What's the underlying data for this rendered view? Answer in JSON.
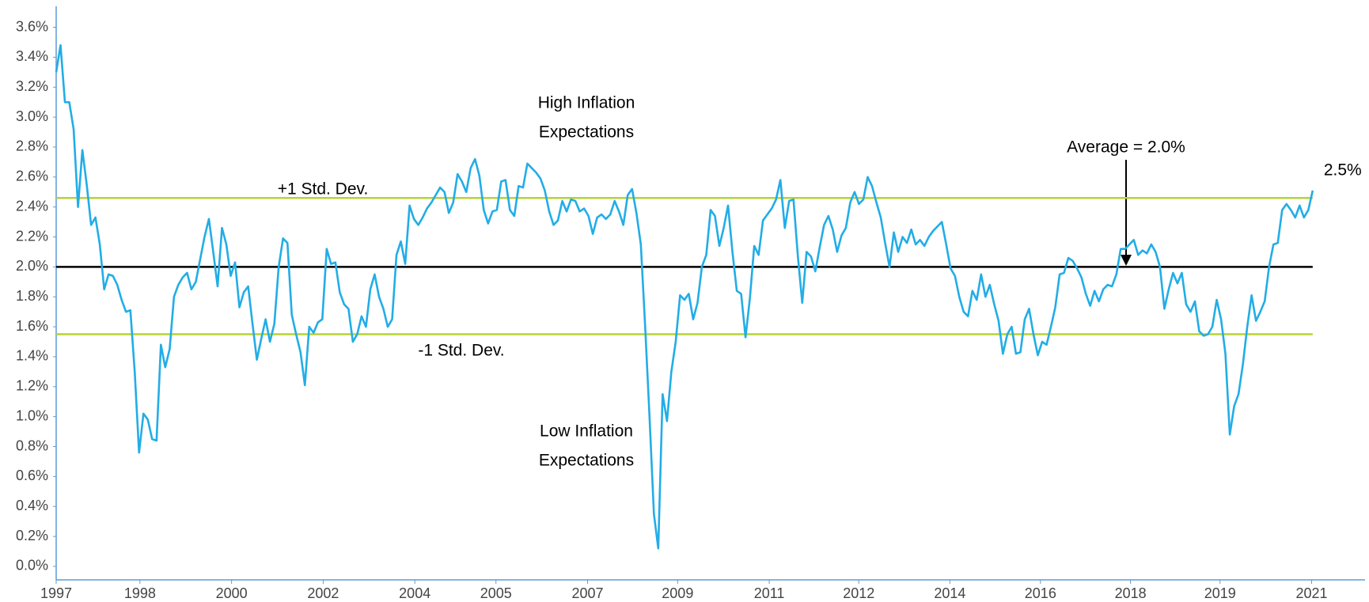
{
  "chart_data": {
    "type": "line",
    "color": "#22ade6",
    "x": [
      1997,
      1997.083,
      1997.167,
      1997.25,
      1997.333,
      1997.417,
      1997.5,
      1997.583,
      1997.667,
      1997.75,
      1997.833,
      1997.917,
      1998,
      1998.083,
      1998.167,
      1998.25,
      1998.333,
      1998.417,
      1998.5,
      1998.583,
      1998.667,
      1998.75,
      1998.833,
      1998.917,
      1999,
      1999.083,
      1999.167,
      1999.25,
      1999.333,
      1999.417,
      1999.5,
      1999.583,
      1999.667,
      1999.75,
      1999.833,
      1999.917,
      2000,
      2000.083,
      2000.167,
      2000.25,
      2000.333,
      2000.417,
      2000.5,
      2000.583,
      2000.667,
      2000.75,
      2000.833,
      2000.917,
      2001,
      2001.083,
      2001.167,
      2001.25,
      2001.333,
      2001.417,
      2001.5,
      2001.583,
      2001.667,
      2001.75,
      2001.833,
      2001.917,
      2002,
      2002.083,
      2002.167,
      2002.25,
      2002.333,
      2002.417,
      2002.5,
      2002.583,
      2002.667,
      2002.75,
      2002.833,
      2002.917,
      2003,
      2003.083,
      2003.167,
      2003.25,
      2003.333,
      2003.417,
      2003.5,
      2003.583,
      2003.667,
      2003.75,
      2003.833,
      2003.917,
      2004,
      2004.083,
      2004.167,
      2004.25,
      2004.333,
      2004.417,
      2004.5,
      2004.583,
      2004.667,
      2004.75,
      2004.833,
      2004.917,
      2005,
      2005.083,
      2005.167,
      2005.25,
      2005.333,
      2005.417,
      2005.5,
      2005.583,
      2005.667,
      2005.75,
      2005.833,
      2005.917,
      2006,
      2006.083,
      2006.167,
      2006.25,
      2006.333,
      2006.417,
      2006.5,
      2006.583,
      2006.667,
      2006.75,
      2006.833,
      2006.917,
      2007,
      2007.083,
      2007.167,
      2007.25,
      2007.333,
      2007.417,
      2007.5,
      2007.583,
      2007.667,
      2007.75,
      2007.833,
      2007.917,
      2008,
      2008.083,
      2008.167,
      2008.25,
      2008.333,
      2008.417,
      2008.5,
      2008.583,
      2008.667,
      2008.75,
      2008.833,
      2008.917,
      2009,
      2009.083,
      2009.167,
      2009.25,
      2009.333,
      2009.417,
      2009.5,
      2009.583,
      2009.667,
      2009.75,
      2009.833,
      2009.917,
      2010,
      2010.083,
      2010.167,
      2010.25,
      2010.333,
      2010.417,
      2010.5,
      2010.583,
      2010.667,
      2010.75,
      2010.833,
      2010.917,
      2011,
      2011.083,
      2011.167,
      2011.25,
      2011.333,
      2011.417,
      2011.5,
      2011.583,
      2011.667,
      2011.75,
      2011.833,
      2011.917,
      2012,
      2012.083,
      2012.167,
      2012.25,
      2012.333,
      2012.417,
      2012.5,
      2012.583,
      2012.667,
      2012.75,
      2012.833,
      2012.917,
      2013,
      2013.083,
      2013.167,
      2013.25,
      2013.333,
      2013.417,
      2013.5,
      2013.583,
      2013.667,
      2013.75,
      2013.833,
      2013.917,
      2014,
      2014.083,
      2014.167,
      2014.25,
      2014.333,
      2014.417,
      2014.5,
      2014.583,
      2014.667,
      2014.75,
      2014.833,
      2014.917,
      2015,
      2015.083,
      2015.167,
      2015.25,
      2015.333,
      2015.417,
      2015.5,
      2015.583,
      2015.667,
      2015.75,
      2015.833,
      2015.917,
      2016,
      2016.083,
      2016.167,
      2016.25,
      2016.333,
      2016.417,
      2016.5,
      2016.583,
      2016.667,
      2016.75,
      2016.833,
      2016.917,
      2017,
      2017.083,
      2017.167,
      2017.25,
      2017.333,
      2017.417,
      2017.5,
      2017.583,
      2017.667,
      2017.75,
      2017.833,
      2017.917,
      2018,
      2018.083,
      2018.167,
      2018.25,
      2018.333,
      2018.417,
      2018.5,
      2018.583,
      2018.667,
      2018.75,
      2018.833,
      2018.917,
      2019,
      2019.083,
      2019.167,
      2019.25,
      2019.333,
      2019.417,
      2019.5,
      2019.583,
      2019.667,
      2019.75,
      2019.833,
      2019.917,
      2020,
      2020.083,
      2020.167,
      2020.25,
      2020.333,
      2020.417,
      2020.5,
      2020.583,
      2020.667,
      2020.75,
      2020.833,
      2020.917,
      2021
    ],
    "values": [
      3.3,
      3.48,
      3.1,
      3.1,
      2.92,
      2.4,
      2.78,
      2.55,
      2.28,
      2.33,
      2.15,
      1.85,
      1.95,
      1.94,
      1.88,
      1.78,
      1.7,
      1.71,
      1.3,
      0.76,
      1.02,
      0.98,
      0.85,
      0.84,
      1.48,
      1.33,
      1.45,
      1.8,
      1.88,
      1.93,
      1.96,
      1.85,
      1.9,
      2.05,
      2.2,
      2.32,
      2.1,
      1.87,
      2.26,
      2.15,
      1.94,
      2.03,
      1.73,
      1.83,
      1.87,
      1.62,
      1.38,
      1.52,
      1.65,
      1.5,
      1.62,
      2.0,
      2.19,
      2.16,
      1.68,
      1.55,
      1.43,
      1.21,
      1.6,
      1.56,
      1.63,
      1.65,
      2.12,
      2.02,
      2.03,
      1.83,
      1.75,
      1.72,
      1.5,
      1.55,
      1.67,
      1.6,
      1.85,
      1.95,
      1.8,
      1.72,
      1.6,
      1.65,
      2.08,
      2.17,
      2.02,
      2.41,
      2.32,
      2.28,
      2.33,
      2.39,
      2.43,
      2.48,
      2.53,
      2.5,
      2.36,
      2.43,
      2.62,
      2.57,
      2.5,
      2.66,
      2.72,
      2.61,
      2.38,
      2.29,
      2.37,
      2.38,
      2.57,
      2.58,
      2.38,
      2.34,
      2.54,
      2.53,
      2.69,
      2.66,
      2.63,
      2.59,
      2.51,
      2.37,
      2.28,
      2.31,
      2.44,
      2.37,
      2.45,
      2.44,
      2.37,
      2.39,
      2.34,
      2.22,
      2.33,
      2.35,
      2.32,
      2.35,
      2.44,
      2.37,
      2.28,
      2.48,
      2.52,
      2.36,
      2.15,
      1.6,
      1.0,
      0.35,
      0.12,
      1.15,
      0.97,
      1.3,
      1.5,
      1.81,
      1.78,
      1.82,
      1.65,
      1.76,
      2.0,
      2.08,
      2.38,
      2.34,
      2.14,
      2.26,
      2.41,
      2.1,
      1.84,
      1.82,
      1.53,
      1.79,
      2.14,
      2.08,
      2.31,
      2.35,
      2.39,
      2.45,
      2.58,
      2.26,
      2.44,
      2.45,
      2.07,
      1.76,
      2.1,
      2.07,
      1.97,
      2.13,
      2.28,
      2.34,
      2.25,
      2.1,
      2.21,
      2.26,
      2.43,
      2.5,
      2.42,
      2.45,
      2.6,
      2.54,
      2.43,
      2.33,
      2.16,
      2.0,
      2.23,
      2.1,
      2.2,
      2.16,
      2.25,
      2.15,
      2.18,
      2.14,
      2.2,
      2.24,
      2.27,
      2.3,
      2.15,
      1.99,
      1.94,
      1.8,
      1.7,
      1.67,
      1.84,
      1.78,
      1.95,
      1.8,
      1.88,
      1.75,
      1.64,
      1.42,
      1.55,
      1.6,
      1.42,
      1.43,
      1.65,
      1.72,
      1.55,
      1.41,
      1.5,
      1.48,
      1.6,
      1.73,
      1.95,
      1.96,
      2.06,
      2.04,
      1.99,
      1.93,
      1.82,
      1.74,
      1.84,
      1.77,
      1.85,
      1.88,
      1.87,
      1.95,
      2.12,
      2.12,
      2.15,
      2.18,
      2.08,
      2.11,
      2.09,
      2.15,
      2.1,
      2.0,
      1.72,
      1.85,
      1.96,
      1.89,
      1.96,
      1.75,
      1.7,
      1.77,
      1.57,
      1.54,
      1.55,
      1.6,
      1.78,
      1.65,
      1.42,
      0.88,
      1.07,
      1.15,
      1.35,
      1.6,
      1.81,
      1.64,
      1.7,
      1.77,
      2.0,
      2.15,
      2.16,
      2.38,
      2.42,
      2.38,
      2.33,
      2.41,
      2.33,
      2.38,
      2.51
    ],
    "last_value_label": "2.5%",
    "xlim": [
      1997,
      2022
    ],
    "ylim": [
      -0.09,
      3.74
    ],
    "xticks": [
      1997,
      {
        "value": 1998.6,
        "label": "1998"
      },
      {
        "value": 2000.35,
        "label": "2000"
      },
      {
        "value": 2002.1,
        "label": "2002"
      },
      {
        "value": 2003.85,
        "label": "2004"
      },
      {
        "value": 2005.4,
        "label": "2005"
      },
      {
        "value": 2007.15,
        "label": "2007"
      },
      {
        "value": 2008.87,
        "label": "2009"
      },
      {
        "value": 2010.62,
        "label": "2011"
      },
      {
        "value": 2012.33,
        "label": "2012"
      },
      {
        "value": 2014.07,
        "label": "2014"
      },
      {
        "value": 2015.8,
        "label": "2016"
      },
      {
        "value": 2017.52,
        "label": "2018"
      },
      {
        "value": 2019.23,
        "label": "2019"
      },
      {
        "value": 2020.98,
        "label": "2021"
      }
    ],
    "yticks": [
      {
        "value": 0,
        "label": "0.0%"
      },
      {
        "value": 0.2,
        "label": "0.2%"
      },
      {
        "value": 0.4,
        "label": "0.4%"
      },
      {
        "value": 0.6,
        "label": "0.6%"
      },
      {
        "value": 0.8,
        "label": "0.8%"
      },
      {
        "value": 1.0,
        "label": "1.0%"
      },
      {
        "value": 1.2,
        "label": "1.2%"
      },
      {
        "value": 1.4,
        "label": "1.4%"
      },
      {
        "value": 1.6,
        "label": "1.6%"
      },
      {
        "value": 1.8,
        "label": "1.8%"
      },
      {
        "value": 2.0,
        "label": "2.0%"
      },
      {
        "value": 2.2,
        "label": "2.2%"
      },
      {
        "value": 2.4,
        "label": "2.4%"
      },
      {
        "value": 2.6,
        "label": "2.6%"
      },
      {
        "value": 2.8,
        "label": "2.8%"
      },
      {
        "value": 3.0,
        "label": "3.0%"
      },
      {
        "value": 3.2,
        "label": "3.2%"
      },
      {
        "value": 3.4,
        "label": "3.4%"
      },
      {
        "value": 3.6,
        "label": "3.6%"
      }
    ],
    "reference_lines": [
      {
        "value": 2.46,
        "color": "#b6d334",
        "label": "+1 Std. Dev."
      },
      {
        "value": 2.0,
        "color": "#000000",
        "label": "Average = 2.0%"
      },
      {
        "value": 1.55,
        "color": "#b6d334",
        "label": "-1 Std. Dev."
      }
    ],
    "annotations": [
      [
        "High Inflation",
        "Expectations"
      ],
      [
        "Low Inflation",
        "Expectations"
      ]
    ]
  }
}
